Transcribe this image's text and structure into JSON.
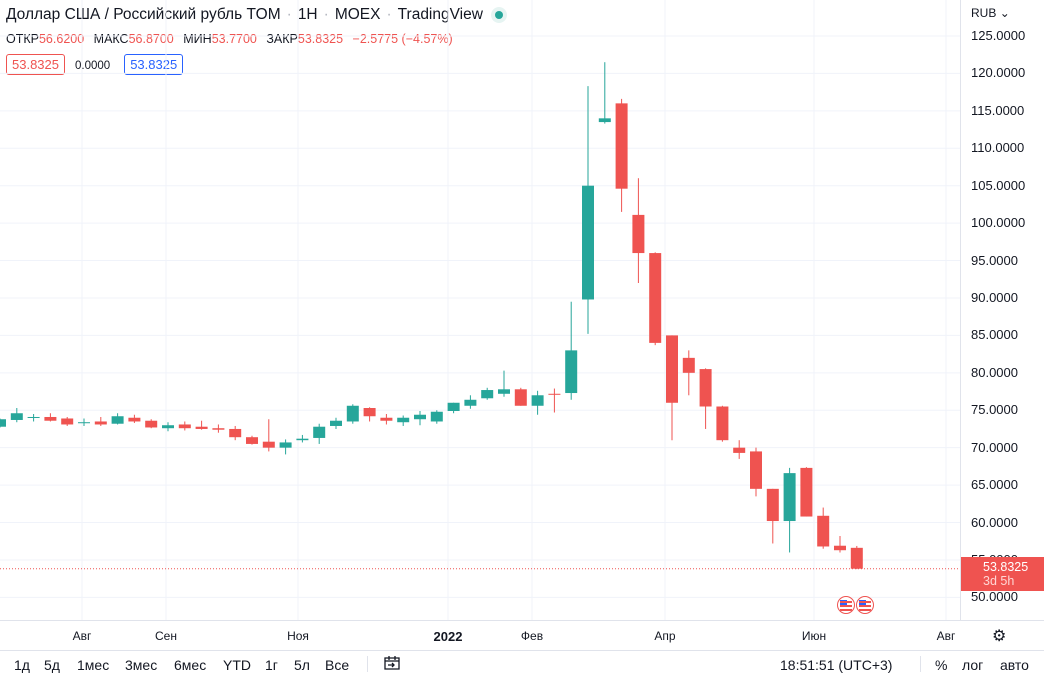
{
  "header": {
    "title": "Доллар США / Российский рубль TOM",
    "interval": "1Н",
    "exchange": "MOEX",
    "source": "TradingView",
    "ohlc": [
      {
        "key": "ОТКР",
        "value": "56.6200"
      },
      {
        "key": "МАКС",
        "value": "56.8700"
      },
      {
        "key": "МИН",
        "value": "53.7700"
      },
      {
        "key": "ЗАКР",
        "value": "53.8325"
      },
      {
        "key": "",
        "value": "−2.5775 (−4.57%)"
      }
    ],
    "bid": "53.8325",
    "spread": "0.0000",
    "ask": "53.8325"
  },
  "price_scale": {
    "currency": "RUB",
    "current_price": "53.8325",
    "countdown": "3d 5h"
  },
  "time_axis": {
    "labels": [
      {
        "text": "Авг",
        "bold": false
      },
      {
        "text": "Сен",
        "bold": false
      },
      {
        "text": "Ноя",
        "bold": false
      },
      {
        "text": "2022",
        "bold": true
      },
      {
        "text": "Фев",
        "bold": false
      },
      {
        "text": "Апр",
        "bold": false
      },
      {
        "text": "Июн",
        "bold": false
      },
      {
        "text": "Авг",
        "bold": false
      }
    ]
  },
  "bottom_bar": {
    "ranges": [
      "1д",
      "5д",
      "1мес",
      "3мес",
      "6мес",
      "YTD",
      "1г",
      "5л",
      "Все"
    ],
    "time": "18:51:51 (UTC+3)",
    "percent": "%",
    "log": "лог",
    "auto": "авто"
  },
  "colors": {
    "up": "#26a69a",
    "down": "#ef5350",
    "grid": "#f0f3fa"
  },
  "chart_data": {
    "type": "candlestick",
    "interval": "1 week",
    "currency": "RUB",
    "ylim": [
      47.5,
      127.5
    ],
    "y_ticks": [
      50,
      55,
      60,
      65,
      70,
      75,
      80,
      85,
      90,
      95,
      100,
      105,
      110,
      115,
      120,
      125
    ],
    "last_price": 53.8325,
    "grid": true,
    "series": [
      {
        "o": 72.8,
        "h": 73.9,
        "l": 72.7,
        "c": 73.8
      },
      {
        "o": 73.7,
        "h": 75.3,
        "l": 73.4,
        "c": 74.6
      },
      {
        "o": 74.0,
        "h": 74.5,
        "l": 73.5,
        "c": 74.1
      },
      {
        "o": 74.1,
        "h": 74.6,
        "l": 73.5,
        "c": 73.6
      },
      {
        "o": 73.9,
        "h": 74.1,
        "l": 72.9,
        "c": 73.1
      },
      {
        "o": 73.3,
        "h": 73.9,
        "l": 72.9,
        "c": 73.4
      },
      {
        "o": 73.5,
        "h": 74.1,
        "l": 72.9,
        "c": 73.1
      },
      {
        "o": 73.2,
        "h": 74.6,
        "l": 73.1,
        "c": 74.2
      },
      {
        "o": 74.0,
        "h": 74.4,
        "l": 73.3,
        "c": 73.5
      },
      {
        "o": 73.6,
        "h": 73.8,
        "l": 72.6,
        "c": 72.7
      },
      {
        "o": 72.6,
        "h": 73.4,
        "l": 72.2,
        "c": 73.0
      },
      {
        "o": 73.1,
        "h": 73.5,
        "l": 72.3,
        "c": 72.6
      },
      {
        "o": 72.8,
        "h": 73.6,
        "l": 72.4,
        "c": 72.5
      },
      {
        "o": 72.6,
        "h": 73.1,
        "l": 72.0,
        "c": 72.4
      },
      {
        "o": 72.5,
        "h": 72.9,
        "l": 71.0,
        "c": 71.4
      },
      {
        "o": 71.4,
        "h": 71.6,
        "l": 70.4,
        "c": 70.5
      },
      {
        "o": 70.8,
        "h": 73.8,
        "l": 69.5,
        "c": 70.0
      },
      {
        "o": 70.0,
        "h": 71.1,
        "l": 69.1,
        "c": 70.7
      },
      {
        "o": 71.0,
        "h": 71.7,
        "l": 70.7,
        "c": 71.2
      },
      {
        "o": 71.3,
        "h": 73.2,
        "l": 70.5,
        "c": 72.8
      },
      {
        "o": 72.9,
        "h": 74.0,
        "l": 72.5,
        "c": 73.6
      },
      {
        "o": 73.5,
        "h": 75.8,
        "l": 73.2,
        "c": 75.6
      },
      {
        "o": 75.3,
        "h": 75.4,
        "l": 73.5,
        "c": 74.2
      },
      {
        "o": 74.0,
        "h": 74.5,
        "l": 73.1,
        "c": 73.6
      },
      {
        "o": 73.4,
        "h": 74.3,
        "l": 72.9,
        "c": 74.0
      },
      {
        "o": 73.8,
        "h": 74.9,
        "l": 73.0,
        "c": 74.4
      },
      {
        "o": 73.5,
        "h": 75.0,
        "l": 73.2,
        "c": 74.8
      },
      {
        "o": 74.9,
        "h": 76.0,
        "l": 74.6,
        "c": 76.0
      },
      {
        "o": 75.6,
        "h": 77.0,
        "l": 75.2,
        "c": 76.4
      },
      {
        "o": 76.6,
        "h": 78.0,
        "l": 76.4,
        "c": 77.7
      },
      {
        "o": 77.2,
        "h": 80.3,
        "l": 76.8,
        "c": 77.8
      },
      {
        "o": 77.8,
        "h": 78.0,
        "l": 75.6,
        "c": 75.6
      },
      {
        "o": 75.6,
        "h": 77.6,
        "l": 74.4,
        "c": 77.0
      },
      {
        "o": 77.2,
        "h": 77.9,
        "l": 74.7,
        "c": 77.1
      },
      {
        "o": 77.3,
        "h": 89.5,
        "l": 76.4,
        "c": 83.0
      },
      {
        "o": 89.8,
        "h": 118.3,
        "l": 85.2,
        "c": 105.0
      },
      {
        "o": 113.5,
        "h": 121.5,
        "l": 113.3,
        "c": 114.0
      },
      {
        "o": 116.0,
        "h": 116.6,
        "l": 101.5,
        "c": 104.6
      },
      {
        "o": 101.1,
        "h": 106.0,
        "l": 92.0,
        "c": 96.0
      },
      {
        "o": 96.0,
        "h": 96.1,
        "l": 83.7,
        "c": 84.0
      },
      {
        "o": 85.0,
        "h": 85.0,
        "l": 71.0,
        "c": 76.0
      },
      {
        "o": 82.0,
        "h": 83.0,
        "l": 77.0,
        "c": 80.0
      },
      {
        "o": 80.5,
        "h": 80.6,
        "l": 72.5,
        "c": 75.5
      },
      {
        "o": 75.5,
        "h": 75.6,
        "l": 70.8,
        "c": 71.0
      },
      {
        "o": 70.0,
        "h": 71.0,
        "l": 68.5,
        "c": 69.3
      },
      {
        "o": 69.5,
        "h": 70.0,
        "l": 63.5,
        "c": 64.5
      },
      {
        "o": 64.5,
        "h": 64.5,
        "l": 57.2,
        "c": 60.2
      },
      {
        "o": 60.2,
        "h": 67.3,
        "l": 56.0,
        "c": 66.6
      },
      {
        "o": 67.3,
        "h": 67.4,
        "l": 60.8,
        "c": 60.8
      },
      {
        "o": 60.9,
        "h": 62.0,
        "l": 56.5,
        "c": 56.8
      },
      {
        "o": 56.9,
        "h": 58.2,
        "l": 56.0,
        "c": 56.3
      },
      {
        "o": 56.62,
        "h": 56.87,
        "l": 53.77,
        "c": 53.8325
      }
    ]
  }
}
